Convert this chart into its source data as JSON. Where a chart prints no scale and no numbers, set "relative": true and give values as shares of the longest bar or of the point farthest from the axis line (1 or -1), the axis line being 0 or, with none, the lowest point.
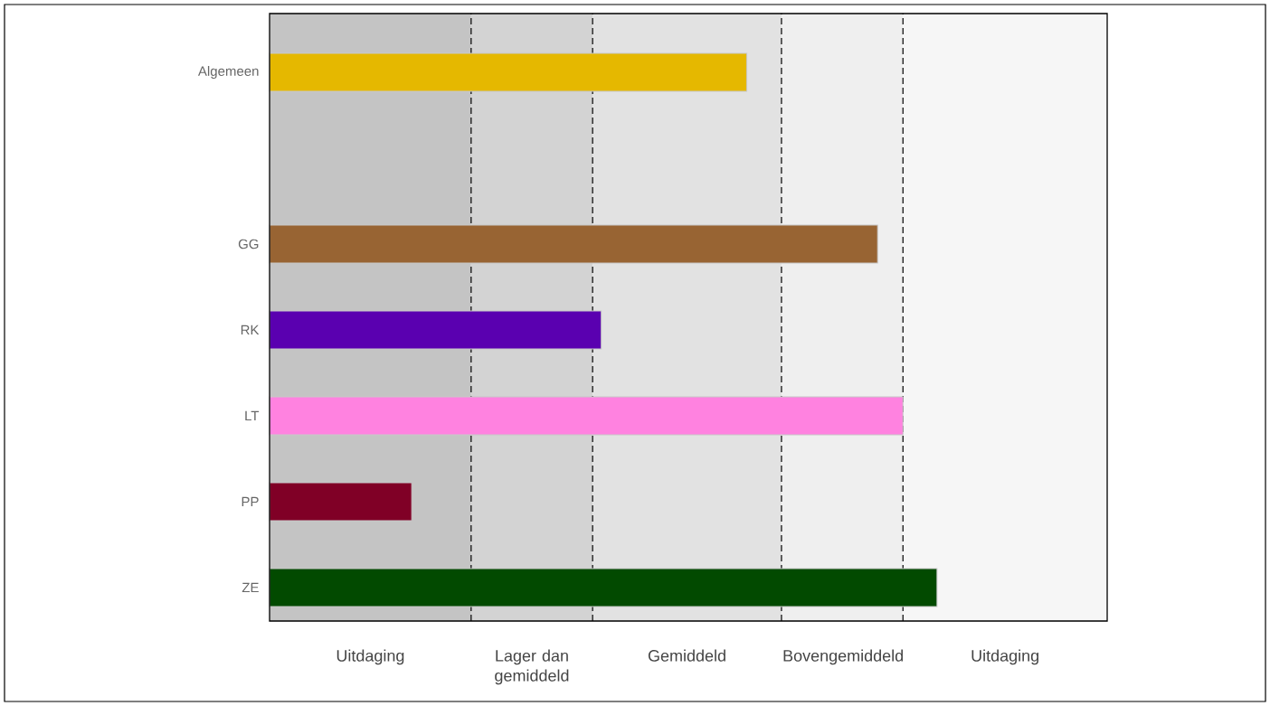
{
  "chart_data": {
    "type": "bar",
    "orientation": "horizontal",
    "relative": true,
    "categories": [
      "Algemeen",
      null,
      "GG",
      "RK",
      "LT",
      "PP",
      "ZE"
    ],
    "values": [
      0.715,
      null,
      0.911,
      0.497,
      0.949,
      0.213,
      1
    ],
    "colors": [
      "#e5b800",
      null,
      "#986433",
      "#5a00b0",
      "#ff82e0",
      "#800026",
      "#024a00"
    ],
    "bands": [
      {
        "axis": "x",
        "from": 0,
        "to": 0.302,
        "label": "Uitdaging",
        "color": "#c4c4c4"
      },
      {
        "axis": "x",
        "from": 0.302,
        "to": 0.484,
        "label": "Lager dan gemiddeld",
        "color": "#d3d3d3"
      },
      {
        "axis": "x",
        "from": 0.484,
        "to": 0.767,
        "label": "Gemiddeld",
        "color": "#e2e2e2"
      },
      {
        "axis": "x",
        "from": 0.767,
        "to": 0.949,
        "label": "Bovengemiddeld",
        "color": "#efefef"
      },
      {
        "axis": "x",
        "from": 0.949,
        "to": 1.255,
        "label": "Uitdaging",
        "color": "#f6f6f6"
      }
    ],
    "ref_lines": [
      {
        "axis": "x",
        "value": 0.302,
        "line_style": "dashed"
      },
      {
        "axis": "x",
        "value": 0.484,
        "line_style": "dashed"
      },
      {
        "axis": "x",
        "value": 0.767,
        "line_style": "dashed"
      },
      {
        "axis": "x",
        "value": 0.949,
        "line_style": "dashed"
      }
    ],
    "grid": false
  }
}
